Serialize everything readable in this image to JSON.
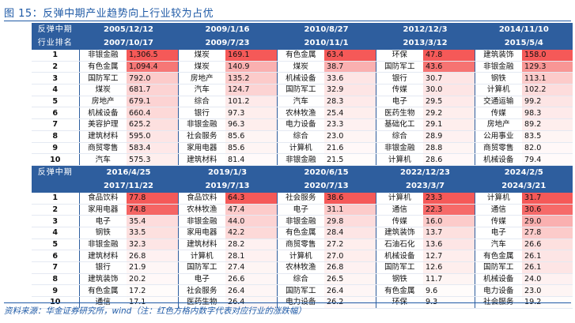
{
  "title": "图 15：反弹中期产业趋势向上行业较为占优",
  "source": "资料来源：华金证券研究所，wind（注：红色方格内数字代表对应行业的涨跌幅）",
  "header_label_top": "反弹中期",
  "header_label_bottom": "行业排名",
  "heat_color": "#f4504f",
  "sections": [
    {
      "label_top": "反弹中期",
      "label_bottom": "行业排名",
      "periods": [
        {
          "start": "2005/12/12",
          "end": "2007/10/17"
        },
        {
          "start": "2009/1/16",
          "end": "2009/7/23"
        },
        {
          "start": "2010/8/27",
          "end": "2010/11/1"
        },
        {
          "start": "2012/12/3",
          "end": "2013/3/12"
        },
        {
          "start": "2014/11/10",
          "end": "2015/5/4"
        }
      ],
      "rows": [
        {
          "rank": "1",
          "cells": [
            {
              "name": "非银金融",
              "value": "1,306.5",
              "heat": 0.95
            },
            {
              "name": "煤炭",
              "value": "169.1",
              "heat": 0.95
            },
            {
              "name": "有色金属",
              "value": "63.4",
              "heat": 0.95
            },
            {
              "name": "环保",
              "value": "47.8",
              "heat": 0.95
            },
            {
              "name": "建筑装饰",
              "value": "158.0",
              "heat": 0.95
            }
          ]
        },
        {
          "rank": "2",
          "cells": [
            {
              "name": "有色金属",
              "value": "1,094.4",
              "heat": 0.78
            },
            {
              "name": "煤炭",
              "value": "140.9",
              "heat": 0.45
            },
            {
              "name": "煤炭",
              "value": "38.7",
              "heat": 0.45
            },
            {
              "name": "国防军工",
              "value": "43.6",
              "heat": 0.8
            },
            {
              "name": "非银金融",
              "value": "129.3",
              "heat": 0.6
            }
          ]
        },
        {
          "rank": "3",
          "cells": [
            {
              "name": "国防军工",
              "value": "792.0",
              "heat": 0.3
            },
            {
              "name": "房地产",
              "value": "135.2",
              "heat": 0.3
            },
            {
              "name": "机械设备",
              "value": "33.6",
              "heat": 0.15
            },
            {
              "name": "银行",
              "value": "30.7",
              "heat": 0.15
            },
            {
              "name": "钢铁",
              "value": "113.1",
              "heat": 0.3
            }
          ]
        },
        {
          "rank": "4",
          "cells": [
            {
              "name": "煤炭",
              "value": "681.7",
              "heat": 0.25
            },
            {
              "name": "汽车",
              "value": "124.7",
              "heat": 0.25
            },
            {
              "name": "国防军工",
              "value": "32.9",
              "heat": 0.15
            },
            {
              "name": "传媒",
              "value": "30.0",
              "heat": 0.15
            },
            {
              "name": "计算机",
              "value": "102.2",
              "heat": 0.2
            }
          ]
        },
        {
          "rank": "5",
          "cells": [
            {
              "name": "房地产",
              "value": "679.1",
              "heat": 0.25
            },
            {
              "name": "综合",
              "value": "101.2",
              "heat": 0.12
            },
            {
              "name": "汽车",
              "value": "28.3",
              "heat": 0.12
            },
            {
              "name": "电子",
              "value": "29.5",
              "heat": 0.12
            },
            {
              "name": "交通运输",
              "value": "99.2",
              "heat": 0.15
            }
          ]
        },
        {
          "rank": "6",
          "cells": [
            {
              "name": "机械设备",
              "value": "660.4",
              "heat": 0.22
            },
            {
              "name": "银行",
              "value": "97.3",
              "heat": 0.1
            },
            {
              "name": "农林牧渔",
              "value": "25.4",
              "heat": 0.1
            },
            {
              "name": "医药生物",
              "value": "29.2",
              "heat": 0.1
            },
            {
              "name": "传媒",
              "value": "98.3",
              "heat": 0.12
            }
          ]
        },
        {
          "rank": "7",
          "cells": [
            {
              "name": "美容护理",
              "value": "625.2",
              "heat": 0.18
            },
            {
              "name": "非银金融",
              "value": "96.3",
              "heat": 0.1
            },
            {
              "name": "电力设备",
              "value": "23.3",
              "heat": 0.08
            },
            {
              "name": "基础化工",
              "value": "29.1",
              "heat": 0.1
            },
            {
              "name": "房地产",
              "value": "89.2",
              "heat": 0.1
            }
          ]
        },
        {
          "rank": "8",
          "cells": [
            {
              "name": "建筑材料",
              "value": "595.0",
              "heat": 0.15
            },
            {
              "name": "社会服务",
              "value": "85.6",
              "heat": 0.06
            },
            {
              "name": "综合",
              "value": "23.0",
              "heat": 0.06
            },
            {
              "name": "综合",
              "value": "28.9",
              "heat": 0.08
            },
            {
              "name": "公用事业",
              "value": "83.5",
              "heat": 0.06
            }
          ]
        },
        {
          "rank": "9",
          "cells": [
            {
              "name": "商贸零售",
              "value": "583.4",
              "heat": 0.13
            },
            {
              "name": "家用电器",
              "value": "85.6",
              "heat": 0.06
            },
            {
              "name": "计算机",
              "value": "21.6",
              "heat": 0.04
            },
            {
              "name": "非银金融",
              "value": "28.8",
              "heat": 0.06
            },
            {
              "name": "商贸零售",
              "value": "82.0",
              "heat": 0.04
            }
          ]
        },
        {
          "rank": "10",
          "cells": [
            {
              "name": "汽车",
              "value": "575.3",
              "heat": 0.1
            },
            {
              "name": "建筑材料",
              "value": "81.4",
              "heat": 0.03
            },
            {
              "name": "非银金融",
              "value": "21.5",
              "heat": 0.02
            },
            {
              "name": "计算机",
              "value": "28.6",
              "heat": 0.04
            },
            {
              "name": "机械设备",
              "value": "79.4",
              "heat": 0.03
            }
          ]
        }
      ]
    },
    {
      "label_top": "反弹中期",
      "label_bottom": "",
      "periods": [
        {
          "start": "2016/4/25",
          "end": "2017/11/22"
        },
        {
          "start": "2019/1/3",
          "end": "2019/7/13"
        },
        {
          "start": "2020/6/15",
          "end": "2020/7/13"
        },
        {
          "start": "2022/12/23",
          "end": "2023/3/7"
        },
        {
          "start": "2024/2/5",
          "end": "2024/3/21"
        }
      ],
      "rows": [
        {
          "rank": "1",
          "cells": [
            {
              "name": "食品饮料",
              "value": "77.8",
              "heat": 0.95
            },
            {
              "name": "食品饮料",
              "value": "64.3",
              "heat": 0.95
            },
            {
              "name": "社会服务",
              "value": "38.6",
              "heat": 0.95
            },
            {
              "name": "计算机",
              "value": "23.3",
              "heat": 0.95
            },
            {
              "name": "计算机",
              "value": "31.7",
              "heat": 0.95
            }
          ]
        },
        {
          "rank": "2",
          "cells": [
            {
              "name": "家用电器",
              "value": "74.8",
              "heat": 0.88
            },
            {
              "name": "农林牧渔",
              "value": "47.4",
              "heat": 0.3
            },
            {
              "name": "电子",
              "value": "31.1",
              "heat": 0.3
            },
            {
              "name": "通信",
              "value": "22.3",
              "heat": 0.85
            },
            {
              "name": "通信",
              "value": "30.6",
              "heat": 0.85
            }
          ]
        },
        {
          "rank": "3",
          "cells": [
            {
              "name": "电子",
              "value": "35.4",
              "heat": 0.2
            },
            {
              "name": "非银金融",
              "value": "44.0",
              "heat": 0.25
            },
            {
              "name": "非银金融",
              "value": "29.8",
              "heat": 0.2
            },
            {
              "name": "传媒",
              "value": "16.0",
              "heat": 0.3
            },
            {
              "name": "传媒",
              "value": "29.0",
              "heat": 0.45
            }
          ]
        },
        {
          "rank": "4",
          "cells": [
            {
              "name": "钢铁",
              "value": "33.5",
              "heat": 0.18
            },
            {
              "name": "家用电器",
              "value": "42.2",
              "heat": 0.22
            },
            {
              "name": "有色金属",
              "value": "28.4",
              "heat": 0.15
            },
            {
              "name": "建筑装饰",
              "value": "13.7",
              "heat": 0.18
            },
            {
              "name": "电子",
              "value": "27.8",
              "heat": 0.3
            }
          ]
        },
        {
          "rank": "5",
          "cells": [
            {
              "name": "非银金融",
              "value": "32.3",
              "heat": 0.15
            },
            {
              "name": "建筑材料",
              "value": "28.2",
              "heat": 0.08
            },
            {
              "name": "商贸零售",
              "value": "27.2",
              "heat": 0.1
            },
            {
              "name": "石油石化",
              "value": "13.6",
              "heat": 0.15
            },
            {
              "name": "汽车",
              "value": "26.6",
              "heat": 0.18
            }
          ]
        },
        {
          "rank": "6",
          "cells": [
            {
              "name": "建筑材料",
              "value": "26.8",
              "heat": 0.08
            },
            {
              "name": "计算机",
              "value": "28.1",
              "heat": 0.08
            },
            {
              "name": "计算机",
              "value": "27.0",
              "heat": 0.1
            },
            {
              "name": "机械设备",
              "value": "12.7",
              "heat": 0.1
            },
            {
              "name": "有色金属",
              "value": "26.1",
              "heat": 0.15
            }
          ]
        },
        {
          "rank": "7",
          "cells": [
            {
              "name": "银行",
              "value": "21.9",
              "heat": 0.05
            },
            {
              "name": "国防军工",
              "value": "27.4",
              "heat": 0.06
            },
            {
              "name": "农林牧渔",
              "value": "26.8",
              "heat": 0.08
            },
            {
              "name": "国防军工",
              "value": "12.6",
              "heat": 0.1
            },
            {
              "name": "国防军工",
              "value": "26.1",
              "heat": 0.15
            }
          ]
        },
        {
          "rank": "8",
          "cells": [
            {
              "name": "建筑装饰",
              "value": "20.2",
              "heat": 0.04
            },
            {
              "name": "电子",
              "value": "26.6",
              "heat": 0.05
            },
            {
              "name": "综合",
              "value": "26.5",
              "heat": 0.06
            },
            {
              "name": "钢铁",
              "value": "11.7",
              "heat": 0.06
            },
            {
              "name": "机械设备",
              "value": "24.0",
              "heat": 0.08
            }
          ]
        },
        {
          "rank": "9",
          "cells": [
            {
              "name": "有色金属",
              "value": "17.2",
              "heat": 0.02
            },
            {
              "name": "社会服务",
              "value": "26.4",
              "heat": 0.05
            },
            {
              "name": "国防军工",
              "value": "26.4",
              "heat": 0.05
            },
            {
              "name": "有色金属",
              "value": "9.6",
              "heat": 0.02
            },
            {
              "name": "电力设备",
              "value": "23.0",
              "heat": 0.06
            }
          ]
        },
        {
          "rank": "10",
          "cells": [
            {
              "name": "通信",
              "value": "17.1",
              "heat": 0.02
            },
            {
              "name": "医药生物",
              "value": "26.4",
              "heat": 0.05
            },
            {
              "name": "电力设备",
              "value": "26.2",
              "heat": 0.04
            },
            {
              "name": "环保",
              "value": "9.3",
              "heat": 0.02
            },
            {
              "name": "社会服务",
              "value": "19.2",
              "heat": 0.02
            }
          ]
        }
      ]
    }
  ]
}
